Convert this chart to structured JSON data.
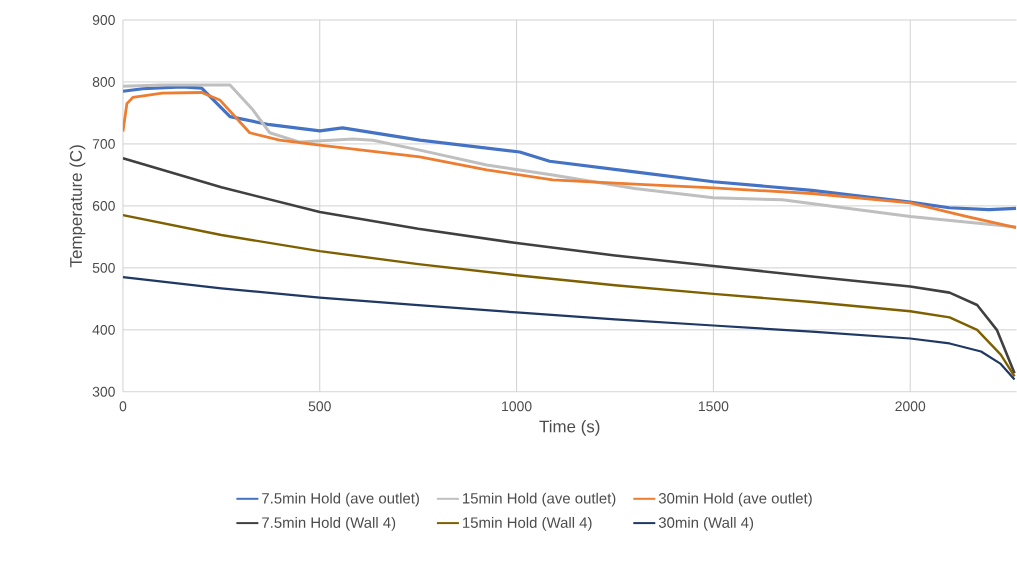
{
  "chart_data": {
    "type": "line",
    "xlabel": "Time (s)",
    "ylabel": "Temperature (C)",
    "xlim": [
      0,
      2270
    ],
    "ylim": [
      300,
      900
    ],
    "xticks": [
      0,
      500,
      1000,
      1500,
      2000
    ],
    "yticks": [
      300,
      400,
      500,
      600,
      700,
      800,
      900
    ],
    "grid": true,
    "legend": "bottom",
    "marker": "none",
    "line_style": "solid",
    "series": [
      {
        "name": "7.5min Hold (ave outlet)",
        "color": "#4472c4",
        "x": [
          0,
          50,
          150,
          200,
          272,
          373,
          500,
          558,
          754,
          1008,
          1084,
          1300,
          1500,
          1750,
          2000,
          2099,
          2200,
          2269
        ],
        "values": [
          785,
          789,
          792,
          790,
          744,
          731,
          721,
          726,
          706,
          687,
          672,
          655,
          639,
          625,
          606,
          597,
          594,
          596
        ]
      },
      {
        "name": "15min Hold (ave outlet)",
        "color": "#bfbfbf",
        "x": [
          0,
          100,
          200,
          272,
          330,
          373,
          449,
          584,
          635,
          754,
          924,
          1092,
          1300,
          1500,
          1675,
          2000,
          2269
        ],
        "values": [
          793,
          795,
          795,
          795,
          755,
          718,
          703,
          708,
          706,
          690,
          666,
          650,
          628,
          613,
          610,
          583,
          566
        ]
      },
      {
        "name": "30min Hold (ave outlet)",
        "color": "#ed7d31",
        "x": [
          0,
          10,
          25,
          100,
          200,
          246,
          322,
          398,
          500,
          754,
          924,
          1092,
          1300,
          1500,
          1750,
          2000,
          2142,
          2269
        ],
        "values": [
          720,
          765,
          775,
          782,
          783,
          771,
          718,
          706,
          698,
          679,
          658,
          642,
          635,
          629,
          620,
          605,
          583,
          565
        ]
      },
      {
        "name": "7.5min Hold (Wall 4)",
        "color": "#404040",
        "x": [
          0,
          250,
          500,
          750,
          1000,
          1250,
          1500,
          1750,
          2000,
          2100,
          2170,
          2220,
          2265
        ],
        "values": [
          677,
          630,
          590,
          563,
          540,
          520,
          503,
          486,
          470,
          460,
          440,
          400,
          330
        ]
      },
      {
        "name": "15min Hold (Wall 4)",
        "color": "#7f6000",
        "x": [
          0,
          250,
          500,
          750,
          1000,
          1250,
          1500,
          1750,
          2000,
          2100,
          2170,
          2230,
          2265
        ],
        "values": [
          585,
          553,
          527,
          506,
          488,
          472,
          458,
          445,
          430,
          420,
          400,
          360,
          325
        ]
      },
      {
        "name": "30min (Wall 4)",
        "color": "#1f3864",
        "x": [
          0,
          250,
          500,
          750,
          1000,
          1250,
          1500,
          1750,
          2000,
          2100,
          2180,
          2230,
          2265
        ],
        "values": [
          485,
          467,
          452,
          440,
          428,
          417,
          407,
          397,
          386,
          378,
          365,
          345,
          320
        ]
      }
    ]
  }
}
